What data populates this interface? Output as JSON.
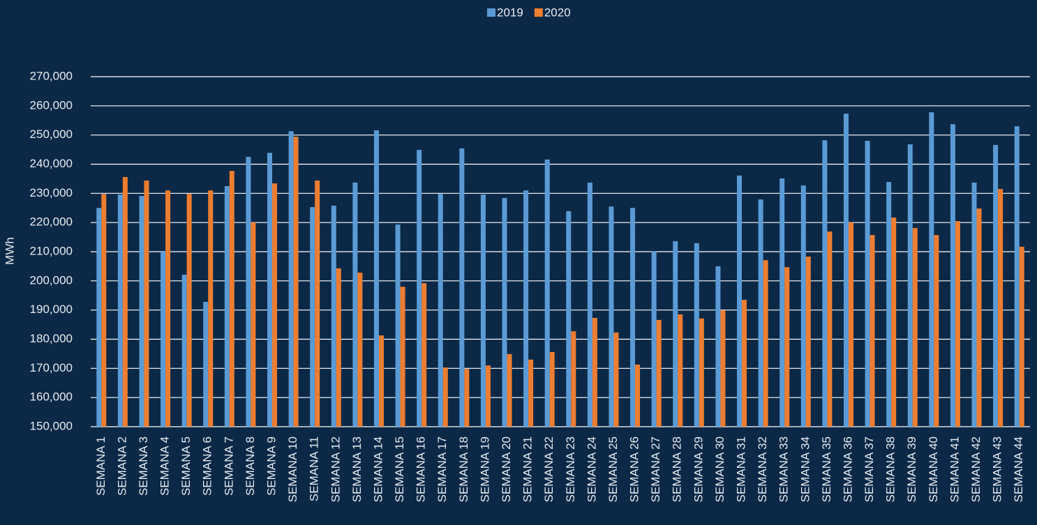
{
  "chart_data": {
    "type": "bar",
    "y_label": "MWh",
    "categories": [
      "SEMANA 1",
      "SEMANA 2",
      "SEMANA 3",
      "SEMANA 4",
      "SEMANA 5",
      "SEMANA 6",
      "SEMANA 7",
      "SEMANA 8",
      "SEMANA 9",
      "SEMANA 10",
      "SEMANA 11",
      "SEMANA 12",
      "SEMANA 13",
      "SEMANA 14",
      "SEMANA 15",
      "SEMANA 16",
      "SEMANA 17",
      "SEMANA 18",
      "SEMANA 19",
      "SEMANA 20",
      "SEMANA 21",
      "SEMANA 22",
      "SEMANA 23",
      "SEMANA 24",
      "SEMANA 25",
      "SEMANA 26",
      "SEMANA 27",
      "SEMANA 28",
      "SEMANA 29",
      "SEMANA 30",
      "SEMANA 31",
      "SEMANA 32",
      "SEMANA 33",
      "SEMANA 34",
      "SEMANA 35",
      "SEMANA 36",
      "SEMANA 37",
      "SEMANA 38",
      "SEMANA 39",
      "SEMANA 40",
      "SEMANA 41",
      "SEMANA 42",
      "SEMANA 43",
      "SEMANA 44"
    ],
    "series": [
      {
        "name": "2019",
        "color": "#5b9bd5",
        "values": [
          225000,
          229600,
          229100,
          210000,
          202100,
          192800,
          232500,
          242500,
          243900,
          251300,
          225300,
          225800,
          233700,
          251600,
          219300,
          244900,
          229800,
          245400,
          229600,
          228400,
          231000,
          241600,
          223900,
          233700,
          225500,
          225000,
          210200,
          213600,
          212900,
          205000,
          236100,
          227900,
          235100,
          232700,
          248200,
          257300,
          248000,
          233900,
          246800,
          257800,
          253700,
          233700,
          246600,
          253000
        ]
      },
      {
        "name": "2020",
        "color": "#ed7d31",
        "values": [
          229800,
          235600,
          234400,
          231000,
          229800,
          231000,
          237700,
          220000,
          233400,
          249400,
          234400,
          204300,
          202800,
          181300,
          198000,
          199200,
          170300,
          169800,
          171000,
          174900,
          173000,
          175600,
          182700,
          187300,
          182300,
          171300,
          186600,
          188500,
          187100,
          189900,
          193500,
          207100,
          204700,
          208300,
          216900,
          220000,
          215700,
          221700,
          218100,
          215700,
          220500,
          224800,
          231500,
          211700
        ]
      }
    ],
    "ylim": [
      150000,
      270000
    ],
    "yticks": [
      {
        "value": 150000,
        "label": "150,000"
      },
      {
        "value": 160000,
        "label": "160,000"
      },
      {
        "value": 170000,
        "label": "170,000"
      },
      {
        "value": 180000,
        "label": "180,000"
      },
      {
        "value": 190000,
        "label": "190,000"
      },
      {
        "value": 200000,
        "label": "200,000"
      },
      {
        "value": 210000,
        "label": "210,000"
      },
      {
        "value": 220000,
        "label": "220,000"
      },
      {
        "value": 230000,
        "label": "230,000"
      },
      {
        "value": 240000,
        "label": "240,000"
      },
      {
        "value": 250000,
        "label": "250,000"
      },
      {
        "value": 260000,
        "label": "260,000"
      },
      {
        "value": 270000,
        "label": "270,000"
      }
    ],
    "grid": true,
    "legend": "top"
  }
}
